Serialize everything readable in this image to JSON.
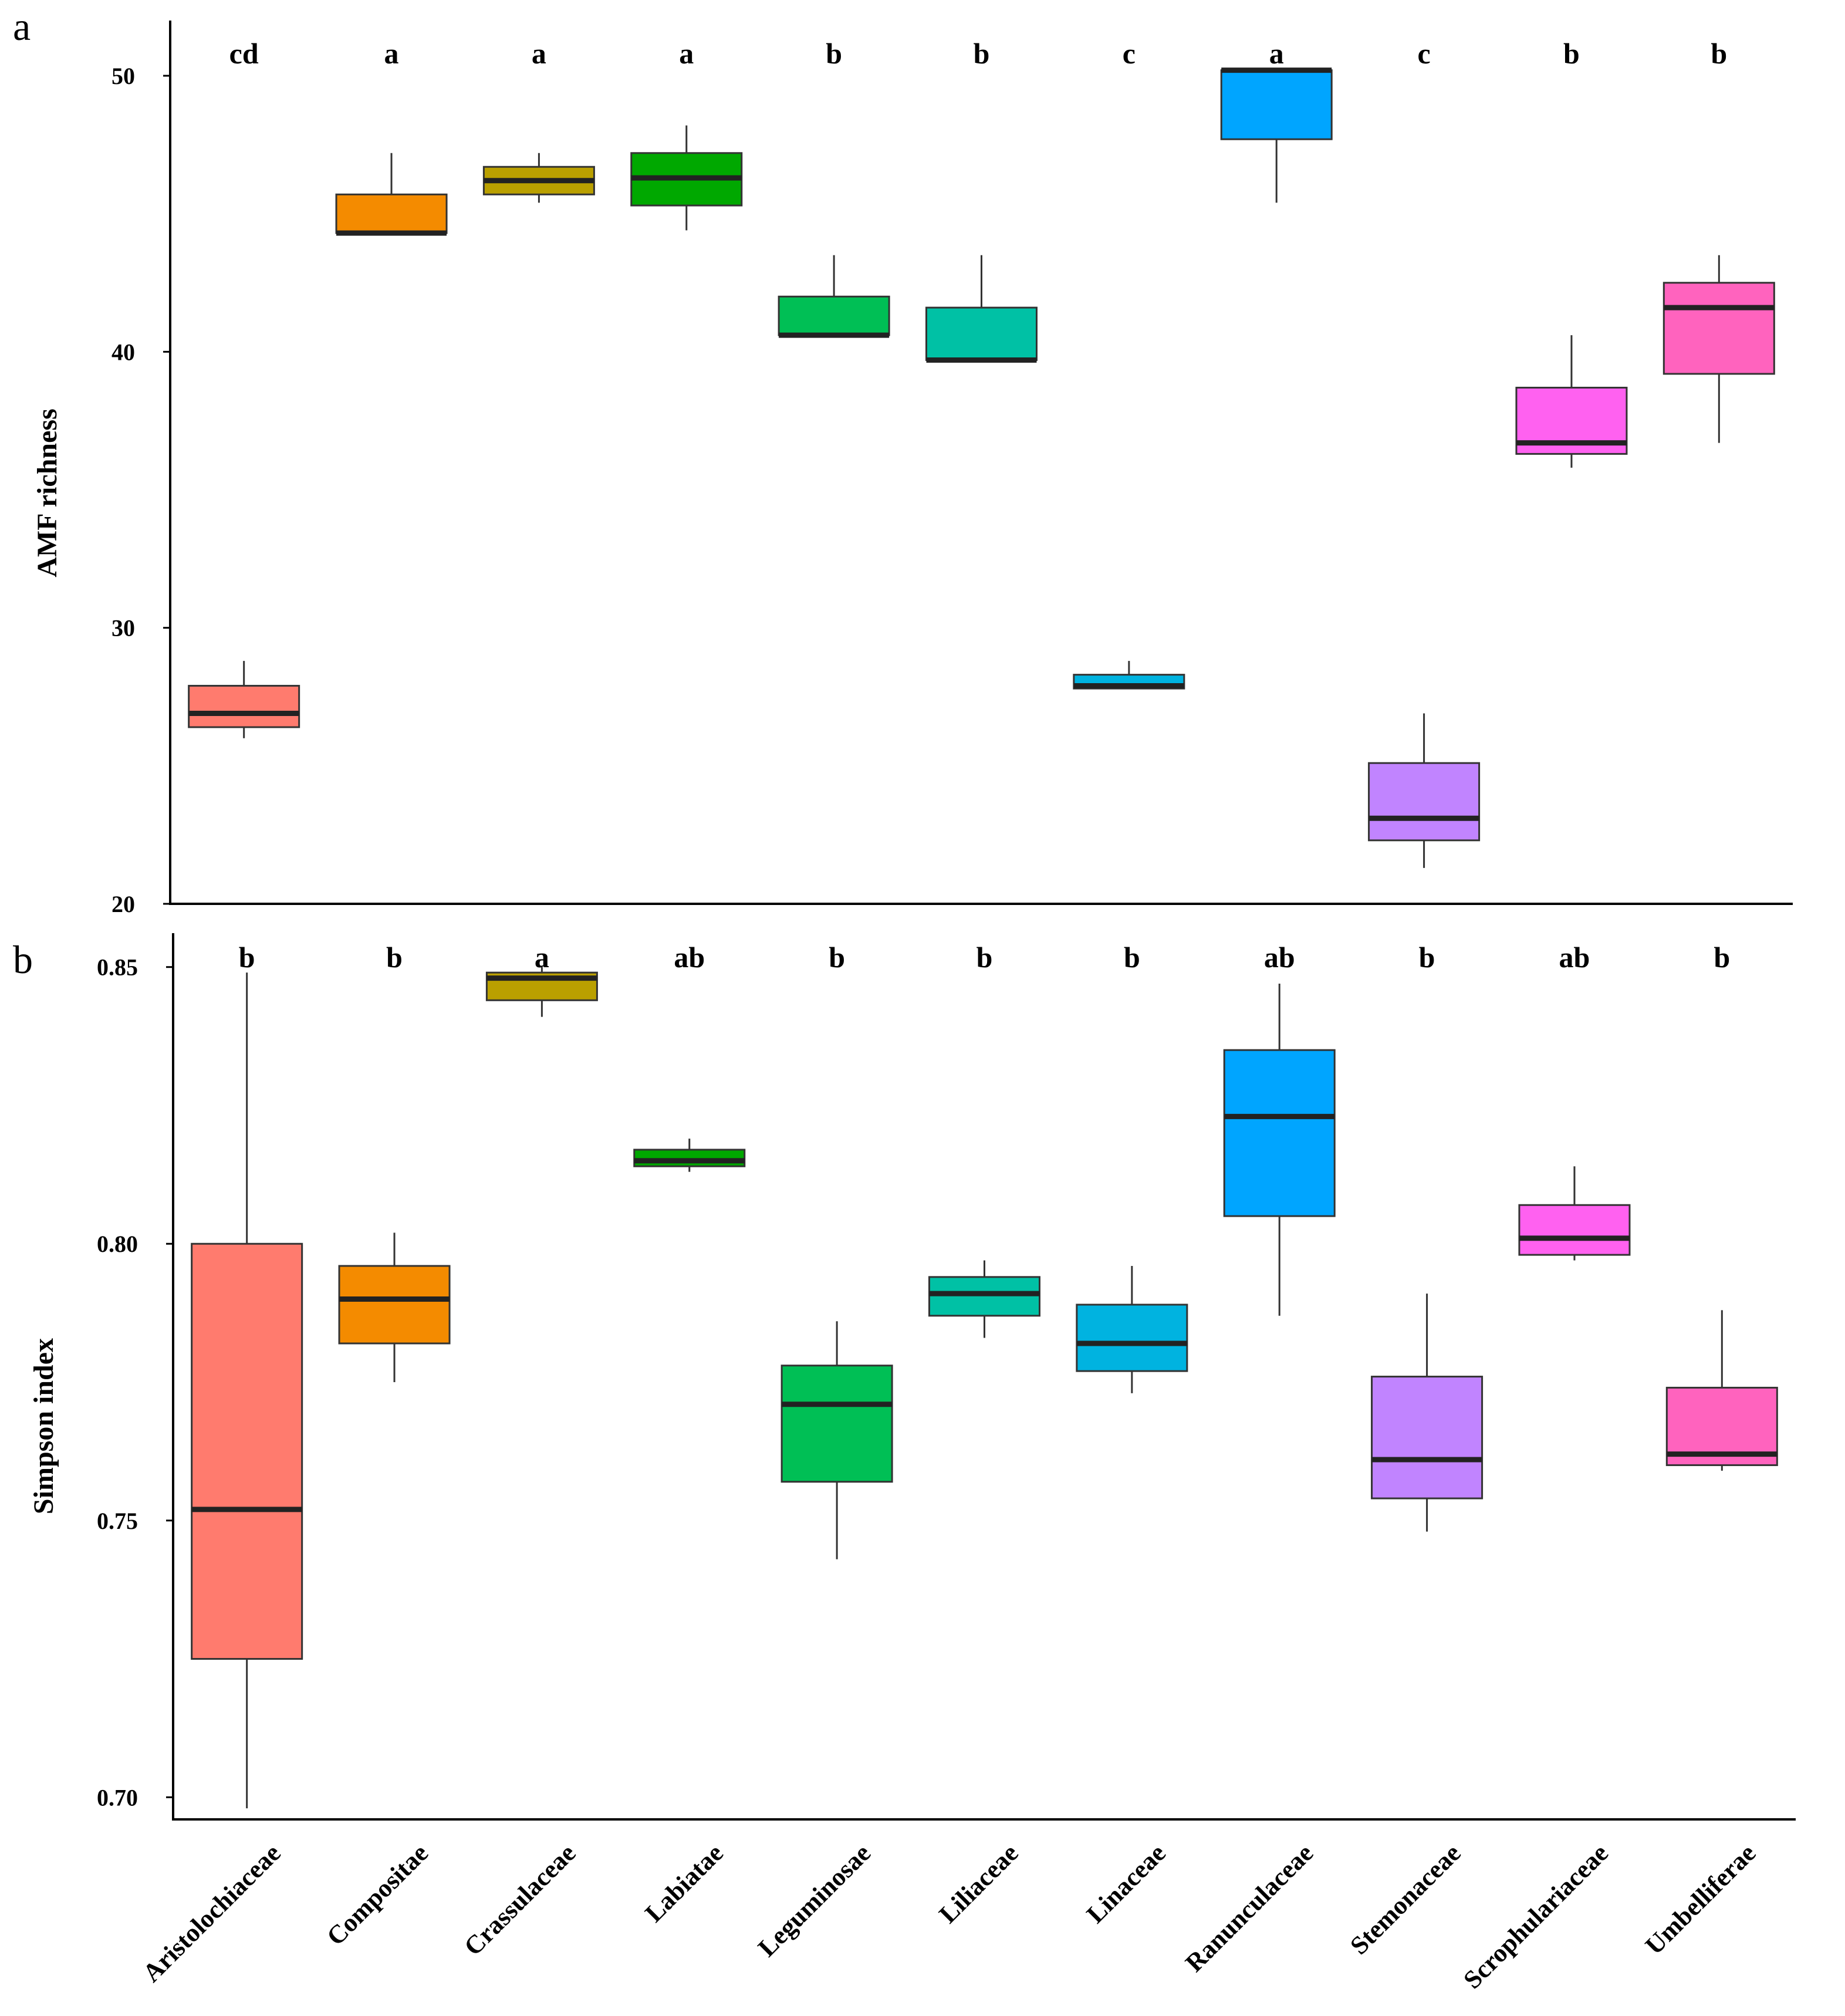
{
  "chart_data": [
    {
      "type": "box",
      "panel_label": "a",
      "title": "",
      "xlabel": "",
      "ylabel": "AMF richness",
      "ylim": [
        20,
        52
      ],
      "yticks": [
        20,
        30,
        40,
        50
      ],
      "ytick_labels": [
        "20",
        "30",
        "40",
        "50"
      ],
      "categories": [
        "Aristolochiaceae",
        "Compositae",
        "Crassulaceae",
        "Labiatae",
        "Leguminosae",
        "Liliaceae",
        "Linaceae",
        "Ranunculaceae",
        "Stemonaceae",
        "Scrophulariaceae",
        "Umbelliferae"
      ],
      "boxes": [
        {
          "min": 26.0,
          "q1": 26.4,
          "median": 26.9,
          "q3": 27.9,
          "max": 28.8
        },
        {
          "min": 44.3,
          "q1": 44.3,
          "median": 44.3,
          "q3": 45.7,
          "max": 47.2
        },
        {
          "min": 45.4,
          "q1": 45.7,
          "median": 46.2,
          "q3": 46.7,
          "max": 47.2
        },
        {
          "min": 44.4,
          "q1": 45.3,
          "median": 46.3,
          "q3": 47.2,
          "max": 48.2
        },
        {
          "min": 40.6,
          "q1": 40.6,
          "median": 40.6,
          "q3": 42.0,
          "max": 43.5
        },
        {
          "min": 39.7,
          "q1": 39.7,
          "median": 39.7,
          "q3": 41.6,
          "max": 43.5
        },
        {
          "min": 27.8,
          "q1": 27.8,
          "median": 27.9,
          "q3": 28.3,
          "max": 28.8
        },
        {
          "min": 45.4,
          "q1": 47.7,
          "median": 50.2,
          "q3": 50.2,
          "max": 50.2
        },
        {
          "min": 21.3,
          "q1": 22.3,
          "median": 23.1,
          "q3": 25.1,
          "max": 26.9
        },
        {
          "min": 35.8,
          "q1": 36.3,
          "median": 36.7,
          "q3": 38.7,
          "max": 40.6
        },
        {
          "min": 36.7,
          "q1": 39.2,
          "median": 41.6,
          "q3": 42.5,
          "max": 43.5
        }
      ],
      "colors": [
        "#FF7B6E",
        "#F48B00",
        "#BAA000",
        "#00A800",
        "#00BF55",
        "#00C1A5",
        "#00B3E0",
        "#00A5FF",
        "#C184FF",
        "#FF61F0",
        "#FF63BE"
      ],
      "significance_letters": [
        "cd",
        "a",
        "a",
        "a",
        "b",
        "b",
        "c",
        "a",
        "c",
        "b",
        "b"
      ]
    },
    {
      "type": "box",
      "panel_label": "b",
      "title": "",
      "xlabel": "",
      "ylabel": "Simpson index",
      "ylim": [
        0.696,
        0.854
      ],
      "yticks": [
        0.7,
        0.75,
        0.8,
        0.85
      ],
      "ytick_labels": [
        "0.70",
        "0.75",
        "0.80",
        "0.85"
      ],
      "categories": [
        "Aristolochiaceae",
        "Compositae",
        "Crassulaceae",
        "Labiatae",
        "Leguminosae",
        "Liliaceae",
        "Linaceae",
        "Ranunculaceae",
        "Stemonaceae",
        "Scrophulariaceae",
        "Umbelliferae"
      ],
      "boxes": [
        {
          "min": 0.698,
          "q1": 0.725,
          "median": 0.752,
          "q3": 0.8,
          "max": 0.849
        },
        {
          "min": 0.775,
          "q1": 0.782,
          "median": 0.79,
          "q3": 0.796,
          "max": 0.802
        },
        {
          "min": 0.841,
          "q1": 0.844,
          "median": 0.848,
          "q3": 0.849,
          "max": 0.85
        },
        {
          "min": 0.813,
          "q1": 0.814,
          "median": 0.815,
          "q3": 0.817,
          "max": 0.819
        },
        {
          "min": 0.743,
          "q1": 0.757,
          "median": 0.771,
          "q3": 0.778,
          "max": 0.786
        },
        {
          "min": 0.783,
          "q1": 0.787,
          "median": 0.791,
          "q3": 0.794,
          "max": 0.797
        },
        {
          "min": 0.773,
          "q1": 0.777,
          "median": 0.782,
          "q3": 0.789,
          "max": 0.796
        },
        {
          "min": 0.787,
          "q1": 0.805,
          "median": 0.823,
          "q3": 0.835,
          "max": 0.847
        },
        {
          "min": 0.748,
          "q1": 0.754,
          "median": 0.761,
          "q3": 0.776,
          "max": 0.791
        },
        {
          "min": 0.797,
          "q1": 0.798,
          "median": 0.801,
          "q3": 0.807,
          "max": 0.814
        },
        {
          "min": 0.759,
          "q1": 0.76,
          "median": 0.762,
          "q3": 0.774,
          "max": 0.788
        }
      ],
      "colors": [
        "#FF7B6E",
        "#F48B00",
        "#BAA000",
        "#00A800",
        "#00BF55",
        "#00C1A5",
        "#00B3E0",
        "#00A5FF",
        "#C184FF",
        "#FF61F0",
        "#FF63BE"
      ],
      "significance_letters": [
        "b",
        "b",
        "a",
        "ab",
        "b",
        "b",
        "b",
        "ab",
        "b",
        "ab",
        "b"
      ]
    }
  ]
}
